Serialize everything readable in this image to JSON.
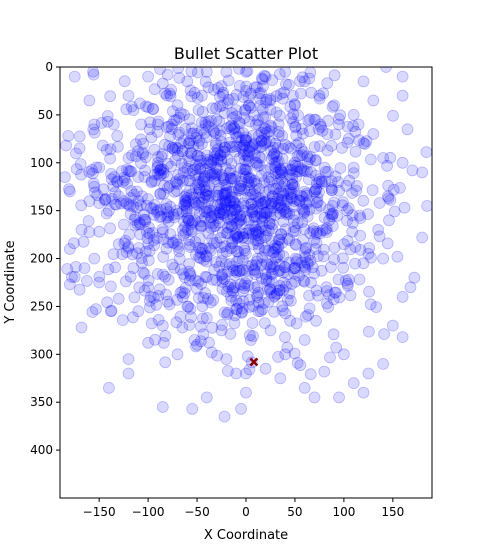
{
  "chart_data": {
    "type": "scatter",
    "title": "Bullet Scatter Plot",
    "xlabel": "X Coordinate",
    "ylabel": "Y Coordinate",
    "xlim": [
      -190,
      190
    ],
    "ylim": [
      0,
      450
    ],
    "y_inverted": true,
    "xticks": [
      -150,
      -100,
      -50,
      0,
      50,
      100,
      150
    ],
    "yticks": [
      0,
      50,
      100,
      150,
      200,
      250,
      300,
      350,
      400
    ],
    "grid": false,
    "legend": "none",
    "series": [
      {
        "marker": "circle",
        "color": "#0000ff",
        "opacity": 0.15,
        "point_count": 1500,
        "center": [
          -10,
          140
        ],
        "spread": [
          70,
          70
        ],
        "x_range": [
          -185,
          185
        ],
        "y_range": [
          0,
          365
        ],
        "points": [
          [
            -150,
            172
          ],
          [
            -168,
            170
          ],
          [
            -95,
            44
          ],
          [
            -138,
            255
          ],
          [
            -185,
            115
          ],
          [
            -175,
            10
          ],
          [
            -160,
            35
          ],
          [
            -140,
            335
          ],
          [
            -120,
            320
          ],
          [
            -85,
            355
          ],
          [
            -55,
            357
          ],
          [
            -22,
            365
          ],
          [
            -5,
            357
          ],
          [
            0,
            340
          ],
          [
            -120,
            30
          ],
          [
            -180,
            227
          ],
          [
            -168,
            272
          ],
          [
            -120,
            305
          ],
          [
            -100,
            288
          ],
          [
            -70,
            300
          ],
          [
            -40,
            345
          ],
          [
            0,
            320
          ],
          [
            15,
            255
          ],
          [
            40,
            300
          ],
          [
            60,
            285
          ],
          [
            80,
            318
          ],
          [
            100,
            300
          ],
          [
            110,
            330
          ],
          [
            125,
            320
          ],
          [
            160,
            282
          ],
          [
            160,
            240
          ],
          [
            172,
            220
          ],
          [
            180,
            178
          ],
          [
            180,
            110
          ],
          [
            185,
            145
          ],
          [
            170,
            108
          ],
          [
            160,
            100
          ],
          [
            165,
            65
          ],
          [
            160,
            30
          ],
          [
            160,
            10
          ],
          [
            143,
            0
          ],
          [
            130,
            35
          ],
          [
            120,
            15
          ],
          [
            115,
            60
          ],
          [
            105,
            75
          ],
          [
            110,
            105
          ],
          [
            95,
            60
          ],
          [
            75,
            30
          ],
          [
            60,
            15
          ],
          [
            40,
            5
          ],
          [
            20,
            10
          ],
          [
            0,
            5
          ],
          [
            -20,
            5
          ],
          [
            -40,
            5
          ],
          [
            -60,
            15
          ],
          [
            -80,
            8
          ],
          [
            -100,
            10
          ],
          [
            -115,
            45
          ],
          [
            -135,
            60
          ],
          [
            -155,
            60
          ],
          [
            -170,
            85
          ],
          [
            -180,
            130
          ],
          [
            -180,
            190
          ],
          [
            -165,
            210
          ],
          [
            -150,
            225
          ],
          [
            -130,
            242
          ],
          [
            -110,
            255
          ],
          [
            -85,
            270
          ],
          [
            -65,
            272
          ],
          [
            -50,
            290
          ],
          [
            -35,
            298
          ],
          [
            -20,
            305
          ],
          [
            -10,
            320
          ],
          [
            20,
            315
          ],
          [
            35,
            325
          ],
          [
            60,
            335
          ],
          [
            70,
            345
          ],
          [
            95,
            345
          ],
          [
            120,
            340
          ],
          [
            140,
            310
          ],
          [
            150,
            270
          ],
          [
            168,
            230
          ],
          [
            140,
            200
          ],
          [
            120,
            205
          ],
          [
            100,
            185
          ],
          [
            85,
            160
          ],
          [
            70,
            130
          ],
          [
            50,
            100
          ],
          [
            30,
            80
          ],
          [
            10,
            60
          ],
          [
            -10,
            45
          ],
          [
            -30,
            55
          ],
          [
            -50,
            70
          ],
          [
            -70,
            85
          ],
          [
            -90,
            100
          ],
          [
            -110,
            115
          ],
          [
            -125,
            140
          ],
          [
            -140,
            150
          ],
          [
            -130,
            185
          ],
          [
            -115,
            210
          ],
          [
            -100,
            230
          ],
          [
            -80,
            245
          ],
          [
            -60,
            250
          ],
          [
            -40,
            262
          ],
          [
            -25,
            275
          ],
          [
            5,
            285
          ],
          [
            25,
            275
          ],
          [
            45,
            265
          ],
          [
            65,
            252
          ],
          [
            85,
            238
          ],
          [
            105,
            222
          ],
          [
            125,
            195
          ],
          [
            135,
            170
          ],
          [
            145,
            135
          ],
          [
            140,
            95
          ],
          [
            130,
            70
          ],
          [
            110,
            50
          ],
          [
            90,
            40
          ],
          [
            70,
            55
          ],
          [
            50,
            40
          ],
          [
            25,
            35
          ],
          [
            0,
            25
          ],
          [
            -25,
            20
          ],
          [
            -45,
            30
          ],
          [
            -70,
            40
          ],
          [
            -90,
            60
          ],
          [
            -105,
            80
          ],
          [
            -120,
            95
          ],
          [
            -150,
            105
          ],
          [
            -160,
            140
          ],
          [
            -155,
            200
          ]
        ]
      },
      {
        "marker": "x",
        "color": "#8b0000",
        "points": [
          [
            8,
            308
          ]
        ]
      }
    ]
  }
}
